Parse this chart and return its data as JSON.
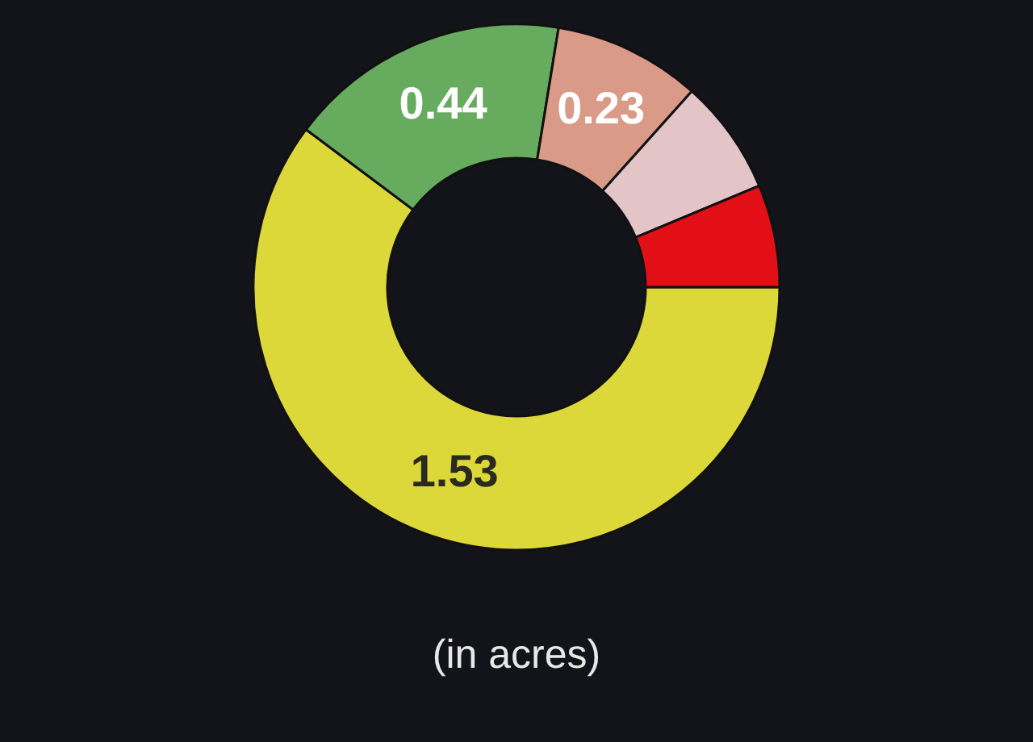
{
  "chart_data": {
    "type": "donut",
    "categories": [
      null,
      null,
      null,
      null,
      null
    ],
    "values": [
      1.53,
      0.44,
      0.23,
      0.18,
      0.16
    ],
    "colors": [
      "#dcd83a",
      "#66ab5e",
      "#d99a88",
      "#e3c5c7",
      "#e30f17"
    ],
    "value_labels": [
      "1.53",
      "0.44",
      "0.23",
      null,
      null
    ],
    "annotations": [
      "(in acres)"
    ]
  }
}
